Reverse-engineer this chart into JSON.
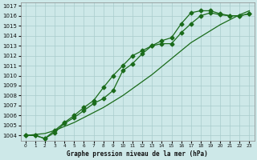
{
  "xlabel": "Graphe pression niveau de la mer (hPa)",
  "x_ticks": [
    0,
    1,
    2,
    3,
    4,
    5,
    6,
    7,
    8,
    9,
    10,
    11,
    12,
    13,
    14,
    15,
    16,
    17,
    18,
    19,
    20,
    21,
    22,
    23
  ],
  "ylim": [
    1004,
    1017
  ],
  "xlim": [
    0,
    23
  ],
  "y_ticks": [
    1004,
    1005,
    1006,
    1007,
    1008,
    1009,
    1010,
    1011,
    1012,
    1013,
    1014,
    1015,
    1016,
    1017
  ],
  "bg_color": "#cde8e8",
  "grid_color": "#a8cccc",
  "line_color": "#1a6b1a",
  "series1": [
    1004.0,
    1004.0,
    1003.7,
    1004.3,
    1005.2,
    1005.8,
    1006.5,
    1007.2,
    1007.7,
    1008.5,
    1010.5,
    1011.2,
    1012.2,
    1013.0,
    1013.2,
    1013.2,
    1014.3,
    1015.2,
    1016.0,
    1016.3,
    1016.1,
    1016.0,
    1016.0,
    1016.2
  ],
  "series2": [
    1004.0,
    1004.0,
    1003.7,
    1004.5,
    1005.3,
    1006.0,
    1006.8,
    1007.5,
    1008.8,
    1010.0,
    1011.0,
    1012.0,
    1012.5,
    1013.0,
    1013.5,
    1013.8,
    1015.2,
    1016.3,
    1016.5,
    1016.5,
    1016.2,
    1016.0,
    1016.0,
    1016.2
  ],
  "series3": [
    1004.0,
    1004.1,
    1004.2,
    1004.5,
    1004.9,
    1005.3,
    1005.8,
    1006.3,
    1006.8,
    1007.4,
    1008.0,
    1008.7,
    1009.4,
    1010.1,
    1010.9,
    1011.7,
    1012.5,
    1013.3,
    1013.9,
    1014.5,
    1015.1,
    1015.6,
    1016.1,
    1016.5
  ],
  "marker": "D",
  "markersize": 2.5,
  "linewidth": 0.9
}
